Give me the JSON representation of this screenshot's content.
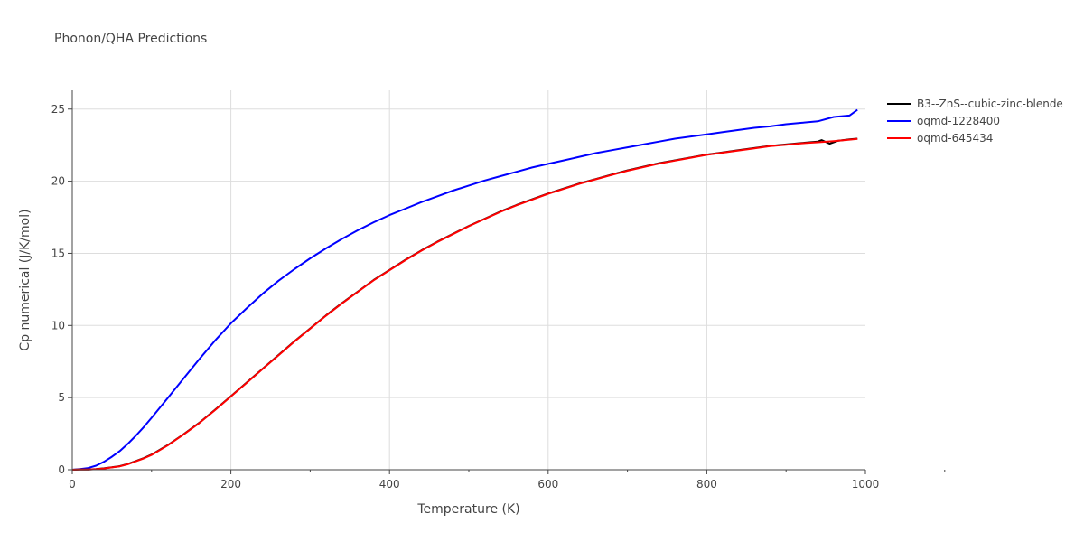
{
  "chart_data": {
    "type": "line",
    "title": "Phonon/QHA Predictions",
    "xlabel": "Temperature (K)",
    "ylabel": "Cp numerical (J/K/mol)",
    "xlim": [
      0,
      1000
    ],
    "ylim": [
      0,
      26.3
    ],
    "xticks": [
      0,
      200,
      400,
      600,
      800,
      1000
    ],
    "yticks": [
      0,
      5,
      10,
      15,
      20,
      25
    ],
    "grid": true,
    "legend_position": "top-right",
    "series": [
      {
        "name": "B3--ZnS--cubic-zinc-blende",
        "color": "#000000",
        "x": [
          0,
          10,
          20,
          30,
          40,
          50,
          60,
          70,
          80,
          90,
          100,
          120,
          140,
          160,
          180,
          200,
          220,
          240,
          260,
          280,
          300,
          320,
          340,
          360,
          380,
          400,
          420,
          440,
          460,
          480,
          500,
          520,
          540,
          560,
          580,
          600,
          620,
          640,
          660,
          680,
          700,
          720,
          740,
          760,
          780,
          800,
          820,
          840,
          860,
          880,
          900,
          920,
          940,
          945,
          955,
          965,
          980,
          990
        ],
        "values": [
          0,
          0.01,
          0.02,
          0.05,
          0.1,
          0.17,
          0.25,
          0.4,
          0.6,
          0.8,
          1.05,
          1.7,
          2.45,
          3.25,
          4.15,
          5.1,
          6.05,
          7.0,
          7.95,
          8.9,
          9.8,
          10.7,
          11.55,
          12.35,
          13.15,
          13.85,
          14.55,
          15.2,
          15.8,
          16.35,
          16.9,
          17.4,
          17.9,
          18.35,
          18.75,
          19.15,
          19.5,
          19.85,
          20.15,
          20.45,
          20.75,
          21.0,
          21.25,
          21.45,
          21.65,
          21.85,
          22.0,
          22.15,
          22.3,
          22.45,
          22.55,
          22.65,
          22.75,
          22.85,
          22.6,
          22.8,
          22.9,
          22.95
        ]
      },
      {
        "name": "oqmd-1228400",
        "color": "#0000ff",
        "x": [
          0,
          10,
          20,
          30,
          40,
          50,
          60,
          70,
          80,
          90,
          100,
          120,
          140,
          160,
          180,
          200,
          220,
          240,
          260,
          280,
          300,
          320,
          340,
          360,
          380,
          400,
          420,
          440,
          460,
          480,
          500,
          520,
          540,
          560,
          580,
          600,
          620,
          640,
          660,
          680,
          700,
          720,
          740,
          760,
          780,
          800,
          820,
          840,
          860,
          880,
          900,
          920,
          940,
          960,
          980,
          990
        ],
        "values": [
          0,
          0.05,
          0.12,
          0.28,
          0.55,
          0.9,
          1.3,
          1.8,
          2.35,
          2.95,
          3.6,
          4.95,
          6.3,
          7.65,
          8.95,
          10.15,
          11.2,
          12.2,
          13.1,
          13.9,
          14.65,
          15.35,
          16.0,
          16.6,
          17.15,
          17.65,
          18.1,
          18.55,
          18.95,
          19.35,
          19.7,
          20.05,
          20.35,
          20.65,
          20.95,
          21.2,
          21.45,
          21.7,
          21.95,
          22.15,
          22.35,
          22.55,
          22.75,
          22.95,
          23.1,
          23.25,
          23.4,
          23.55,
          23.7,
          23.8,
          23.95,
          24.05,
          24.15,
          24.45,
          24.55,
          24.95
        ]
      },
      {
        "name": "oqmd-645434",
        "color": "#ff0000",
        "x": [
          0,
          10,
          20,
          30,
          40,
          50,
          60,
          70,
          80,
          90,
          100,
          120,
          140,
          160,
          180,
          200,
          220,
          240,
          260,
          280,
          300,
          320,
          340,
          360,
          380,
          400,
          420,
          440,
          460,
          480,
          500,
          520,
          540,
          560,
          580,
          600,
          620,
          640,
          660,
          680,
          700,
          720,
          740,
          760,
          780,
          800,
          820,
          840,
          860,
          880,
          900,
          920,
          940,
          960,
          980,
          990
        ],
        "values": [
          0,
          0.01,
          0.02,
          0.04,
          0.09,
          0.16,
          0.24,
          0.38,
          0.58,
          0.78,
          1.03,
          1.68,
          2.43,
          3.23,
          4.13,
          5.08,
          6.03,
          6.98,
          7.93,
          8.88,
          9.78,
          10.68,
          11.53,
          12.33,
          13.13,
          13.83,
          14.53,
          15.18,
          15.78,
          16.33,
          16.88,
          17.38,
          17.88,
          18.33,
          18.73,
          19.13,
          19.48,
          19.83,
          20.13,
          20.43,
          20.73,
          20.98,
          21.23,
          21.43,
          21.63,
          21.83,
          21.98,
          22.13,
          22.28,
          22.43,
          22.53,
          22.63,
          22.7,
          22.78,
          22.88,
          22.93
        ]
      }
    ]
  }
}
